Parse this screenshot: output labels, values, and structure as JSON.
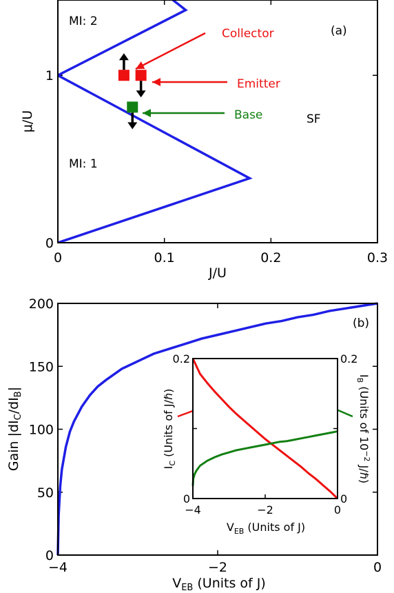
{
  "colors": {
    "blue": "#1f1fe6",
    "red": "#ee1111",
    "green": "#138013",
    "black": "#000000"
  },
  "chart_data": [
    {
      "type": "line",
      "panel_label": "(a)",
      "xlabel": "J/U",
      "ylabel": "μ/U",
      "xlim": [
        0,
        0.3
      ],
      "ylim": [
        0,
        1.45
      ],
      "x_ticks": [
        "0",
        "0.1",
        "0.2",
        "0.3"
      ],
      "y_ticks": [
        "0",
        "1"
      ],
      "x_tick_values": [
        0,
        0.1,
        0.2,
        0.3
      ],
      "y_tick_values": [
        0,
        1
      ],
      "series": [
        {
          "color": "#1f1fe6",
          "points": [
            [
              0,
              0
            ],
            [
              0.18,
              0.385
            ],
            [
              0,
              1.0
            ],
            [
              0.12,
              1.39
            ],
            [
              0.108,
              1.45
            ]
          ]
        }
      ],
      "region_labels": [
        "MI: 2",
        "MI: 1",
        "SF"
      ],
      "markers": [
        {
          "name": "collector",
          "x": 0.062,
          "y": 1.0,
          "color": "#ee1111",
          "arrow": "up"
        },
        {
          "name": "emitter",
          "x": 0.078,
          "y": 1.0,
          "color": "#ee1111",
          "arrow": "down"
        },
        {
          "name": "base",
          "x": 0.07,
          "y": 0.81,
          "color": "#138013",
          "arrow": "down"
        }
      ],
      "annotations": [
        {
          "text": "Collector",
          "color": "#ee1111"
        },
        {
          "text": "Emitter",
          "color": "#ee1111"
        },
        {
          "text": "Base",
          "color": "#138013"
        }
      ]
    },
    {
      "type": "line",
      "panel_label": "(b)",
      "xlabel_main": "V",
      "xlabel_sub": "EB",
      "xlabel_rest": " (Units of J)",
      "ylabel_main": "Gain |dI",
      "ylabel_sub1": "C",
      "ylabel_mid": "/dI",
      "ylabel_sub2": "B",
      "ylabel_end": "|",
      "xlim": [
        -4,
        0
      ],
      "ylim": [
        0,
        200
      ],
      "x_ticks": [
        "−4",
        "−2",
        "0"
      ],
      "y_ticks": [
        "0",
        "50",
        "100",
        "150",
        "200"
      ],
      "x_tick_values": [
        -4,
        -2,
        0
      ],
      "y_tick_values": [
        0,
        50,
        100,
        150,
        200
      ],
      "series": [
        {
          "color": "#1f1fe6",
          "x": [
            -4.0,
            -3.99,
            -3.97,
            -3.95,
            -3.9,
            -3.85,
            -3.8,
            -3.7,
            -3.6,
            -3.5,
            -3.4,
            -3.2,
            -3.0,
            -2.8,
            -2.6,
            -2.4,
            -2.2,
            -2.0,
            -1.8,
            -1.6,
            -1.4,
            -1.2,
            -1.0,
            -0.8,
            -0.6,
            -0.4,
            -0.2,
            0.0
          ],
          "y": [
            0,
            32,
            55,
            68,
            86,
            98,
            106,
            118,
            127,
            134,
            139,
            148,
            154,
            160,
            164,
            168,
            172,
            175,
            178,
            181,
            184,
            186,
            189,
            191,
            194,
            196,
            198,
            200
          ]
        }
      ],
      "inset": {
        "xlabel_main": "V",
        "xlabel_sub": "EB",
        "xlabel_rest": " (Units of J)",
        "ylabel_left_main": "I",
        "ylabel_left_sub": "C",
        "ylabel_left_rest": " (Units of J/ℏ)",
        "ylabel_right_main": "I",
        "ylabel_right_sub": "B",
        "ylabel_right_rest1": " (Units of 10",
        "ylabel_right_sup": "−2",
        "ylabel_right_rest2": " J/ℏ)",
        "xlim": [
          -4,
          0
        ],
        "ylim": [
          0,
          0.2
        ],
        "x_ticks": [
          "−4",
          "−2",
          "0"
        ],
        "x_tick_values": [
          -4,
          -2,
          0
        ],
        "left_y_ticks": [
          "0",
          "0.2"
        ],
        "right_y_ticks": [
          "0",
          "0.2"
        ],
        "series": [
          {
            "color": "#ee1111",
            "axis": "left",
            "x": [
              -4.0,
              -3.8,
              -3.6,
              -3.4,
              -3.2,
              -3.0,
              -2.8,
              -2.6,
              -2.4,
              -2.2,
              -2.0,
              -1.8,
              -1.6,
              -1.4,
              -1.2,
              -1.0,
              -0.8,
              -0.6,
              -0.4,
              -0.2,
              0.0
            ],
            "y": [
              0.2,
              0.178,
              0.165,
              0.153,
              0.142,
              0.131,
              0.121,
              0.112,
              0.103,
              0.094,
              0.085,
              0.077,
              0.069,
              0.061,
              0.053,
              0.045,
              0.036,
              0.028,
              0.019,
              0.01,
              0.0
            ]
          },
          {
            "color": "#138013",
            "axis": "right",
            "x": [
              -4.0,
              -3.99,
              -3.95,
              -3.9,
              -3.8,
              -3.6,
              -3.4,
              -3.2,
              -3.0,
              -2.8,
              -2.6,
              -2.4,
              -2.2,
              -2.0,
              -1.8,
              -1.6,
              -1.4,
              -1.2,
              -1.0,
              -0.8,
              -0.6,
              -0.4,
              -0.2,
              0.0
            ],
            "y": [
              0.018,
              0.028,
              0.035,
              0.04,
              0.047,
              0.054,
              0.059,
              0.063,
              0.066,
              0.069,
              0.071,
              0.073,
              0.075,
              0.077,
              0.079,
              0.081,
              0.082,
              0.084,
              0.086,
              0.088,
              0.09,
              0.092,
              0.094,
              0.096
            ]
          }
        ]
      }
    }
  ]
}
